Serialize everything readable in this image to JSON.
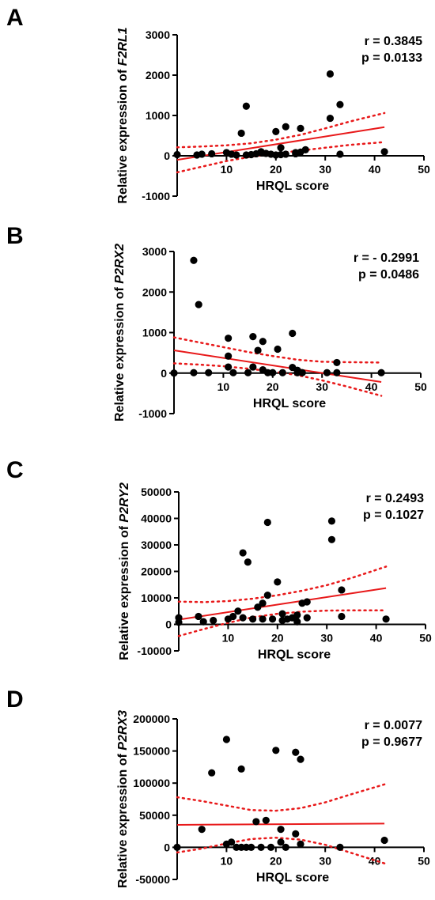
{
  "colors": {
    "point": "#000000",
    "fit": "#e8191a",
    "axis": "#000000"
  },
  "chart_data": [
    {
      "type": "scatter",
      "panel": "A",
      "ylabel_prefix": "Relative expression of ",
      "gene": "F2RL1",
      "xlabel": "HRQL score",
      "xlim": [
        0,
        50
      ],
      "ylim": [
        -1000,
        3000
      ],
      "xticks": [
        10,
        20,
        30,
        40,
        50
      ],
      "yticks": [
        -1000,
        0,
        1000,
        2000,
        3000
      ],
      "r_text": "r = 0.3845",
      "p_text": "p = 0.0133",
      "points": [
        [
          0,
          30
        ],
        [
          4,
          20
        ],
        [
          5,
          40
        ],
        [
          7,
          50
        ],
        [
          10,
          80
        ],
        [
          11,
          40
        ],
        [
          12,
          20
        ],
        [
          13,
          560
        ],
        [
          14,
          1230
        ],
        [
          14,
          20
        ],
        [
          15,
          30
        ],
        [
          16,
          50
        ],
        [
          17,
          80
        ],
        [
          17,
          100
        ],
        [
          18,
          60
        ],
        [
          19,
          40
        ],
        [
          20,
          20
        ],
        [
          20,
          600
        ],
        [
          21,
          200
        ],
        [
          21,
          30
        ],
        [
          22,
          720
        ],
        [
          22,
          40
        ],
        [
          24,
          50
        ],
        [
          24,
          80
        ],
        [
          25,
          680
        ],
        [
          25,
          90
        ],
        [
          26,
          150
        ],
        [
          31,
          2030
        ],
        [
          31,
          930
        ],
        [
          33,
          1270
        ],
        [
          33,
          40
        ],
        [
          42,
          100
        ]
      ],
      "fit": {
        "x": [
          0,
          42
        ],
        "y": [
          -100,
          710
        ]
      },
      "ci_upper": {
        "x": [
          0,
          5,
          10,
          15,
          20,
          25,
          30,
          35,
          42
        ],
        "y": [
          210,
          230,
          260,
          310,
          400,
          520,
          680,
          850,
          1060
        ]
      },
      "ci_lower": {
        "x": [
          0,
          5,
          10,
          15,
          20,
          25,
          30,
          35,
          42
        ],
        "y": [
          -410,
          -270,
          -130,
          -20,
          60,
          130,
          200,
          270,
          340
        ]
      }
    },
    {
      "type": "scatter",
      "panel": "B",
      "ylabel_prefix": "Relative expression of ",
      "gene": "P2RX2",
      "xlabel": "HRQL score",
      "xlim": [
        0,
        50
      ],
      "ylim": [
        -1000,
        3000
      ],
      "xticks": [
        10,
        20,
        30,
        40,
        50
      ],
      "yticks": [
        -1000,
        0,
        1000,
        2000,
        3000
      ],
      "r_text": "r = - 0.2991",
      "p_text": "p = 0.0486",
      "points": [
        [
          0,
          0
        ],
        [
          4,
          2780
        ],
        [
          5,
          1690
        ],
        [
          4,
          10
        ],
        [
          7,
          10
        ],
        [
          11,
          860
        ],
        [
          11,
          420
        ],
        [
          11,
          150
        ],
        [
          12,
          10
        ],
        [
          15,
          10
        ],
        [
          16,
          900
        ],
        [
          16,
          150
        ],
        [
          17,
          560
        ],
        [
          18,
          780
        ],
        [
          18,
          80
        ],
        [
          19,
          10
        ],
        [
          20,
          10
        ],
        [
          21,
          590
        ],
        [
          22,
          10
        ],
        [
          24,
          980
        ],
        [
          24,
          140
        ],
        [
          25,
          70
        ],
        [
          25,
          10
        ],
        [
          26,
          10
        ],
        [
          31,
          10
        ],
        [
          33,
          260
        ],
        [
          33,
          10
        ],
        [
          42,
          10
        ]
      ],
      "fit": {
        "x": [
          0,
          42
        ],
        "y": [
          560,
          -220
        ]
      },
      "ci_upper": {
        "x": [
          0,
          5,
          10,
          15,
          20,
          25,
          30,
          35,
          42
        ],
        "y": [
          880,
          760,
          640,
          520,
          420,
          330,
          280,
          270,
          260
        ]
      },
      "ci_lower": {
        "x": [
          0,
          5,
          10,
          15,
          20,
          25,
          30,
          35,
          42
        ],
        "y": [
          240,
          210,
          170,
          110,
          40,
          -50,
          -180,
          -330,
          -560
        ]
      }
    },
    {
      "type": "scatter",
      "panel": "C",
      "ylabel_prefix": "Relative expression of ",
      "gene": "P2RY2",
      "xlabel": "HRQL score",
      "xlim": [
        0,
        50
      ],
      "ylim": [
        -10000,
        50000
      ],
      "xticks": [
        10,
        20,
        30,
        40,
        50
      ],
      "yticks": [
        -10000,
        0,
        10000,
        20000,
        30000,
        40000,
        50000
      ],
      "r_text": "r = 0.2493",
      "p_text": "p = 0.1027",
      "points": [
        [
          0,
          2500
        ],
        [
          0,
          800
        ],
        [
          4,
          3000
        ],
        [
          5,
          1000
        ],
        [
          7,
          1500
        ],
        [
          10,
          2000
        ],
        [
          11,
          3000
        ],
        [
          12,
          5000
        ],
        [
          13,
          27000
        ],
        [
          13,
          2500
        ],
        [
          14,
          23500
        ],
        [
          15,
          2000
        ],
        [
          16,
          6500
        ],
        [
          17,
          8000
        ],
        [
          17,
          2000
        ],
        [
          18,
          38500
        ],
        [
          18,
          11000
        ],
        [
          19,
          2000
        ],
        [
          20,
          16000
        ],
        [
          21,
          4000
        ],
        [
          21,
          1500
        ],
        [
          22,
          2000
        ],
        [
          23,
          2500
        ],
        [
          24,
          3500
        ],
        [
          24,
          1000
        ],
        [
          25,
          8000
        ],
        [
          26,
          2500
        ],
        [
          26,
          8500
        ],
        [
          31,
          39000
        ],
        [
          31,
          32000
        ],
        [
          33,
          13000
        ],
        [
          33,
          3000
        ],
        [
          42,
          2000
        ]
      ],
      "fit": {
        "x": [
          0,
          42
        ],
        "y": [
          1800,
          13700
        ]
      },
      "ci_upper": {
        "x": [
          0,
          5,
          10,
          15,
          20,
          25,
          30,
          35,
          42
        ],
        "y": [
          8600,
          8400,
          8800,
          9700,
          11000,
          12700,
          14800,
          17500,
          21800
        ]
      },
      "ci_lower": {
        "x": [
          0,
          5,
          10,
          15,
          20,
          25,
          30,
          35,
          42
        ],
        "y": [
          -4400,
          -1800,
          600,
          2700,
          4000,
          4800,
          5200,
          5300,
          5300
        ]
      }
    },
    {
      "type": "scatter",
      "panel": "D",
      "ylabel_prefix": "Relative expression of ",
      "gene": "P2RX3",
      "xlabel": "HRQL score",
      "xlim": [
        0,
        50
      ],
      "ylim": [
        -50000,
        200000
      ],
      "xticks": [
        10,
        20,
        30,
        40,
        50
      ],
      "yticks": [
        -50000,
        0,
        50000,
        100000,
        150000,
        200000
      ],
      "r_text": "r = 0.0077",
      "p_text": "p = 0.9677",
      "points": [
        [
          0,
          0
        ],
        [
          5,
          28000
        ],
        [
          7,
          116000
        ],
        [
          10,
          168000
        ],
        [
          10,
          5000
        ],
        [
          11,
          8000
        ],
        [
          12,
          0
        ],
        [
          13,
          122000
        ],
        [
          13,
          0
        ],
        [
          14,
          0
        ],
        [
          15,
          0
        ],
        [
          16,
          40000
        ],
        [
          17,
          0
        ],
        [
          18,
          42000
        ],
        [
          19,
          0
        ],
        [
          20,
          151000
        ],
        [
          21,
          28000
        ],
        [
          21,
          8000
        ],
        [
          22,
          0
        ],
        [
          24,
          148000
        ],
        [
          24,
          21000
        ],
        [
          25,
          137000
        ],
        [
          25,
          5000
        ],
        [
          33,
          0
        ],
        [
          42,
          11000
        ]
      ],
      "fit": {
        "x": [
          0,
          42
        ],
        "y": [
          35000,
          37000
        ]
      },
      "ci_upper": {
        "x": [
          0,
          5,
          10,
          15,
          20,
          25,
          30,
          35,
          42
        ],
        "y": [
          78000,
          72000,
          65000,
          58000,
          57000,
          61000,
          70000,
          82000,
          98000
        ]
      },
      "ci_lower": {
        "x": [
          0,
          5,
          10,
          15,
          20,
          25,
          30,
          35,
          42
        ],
        "y": [
          -8000,
          -2000,
          6000,
          13000,
          15000,
          12000,
          4000,
          -8000,
          -25000
        ]
      }
    }
  ]
}
